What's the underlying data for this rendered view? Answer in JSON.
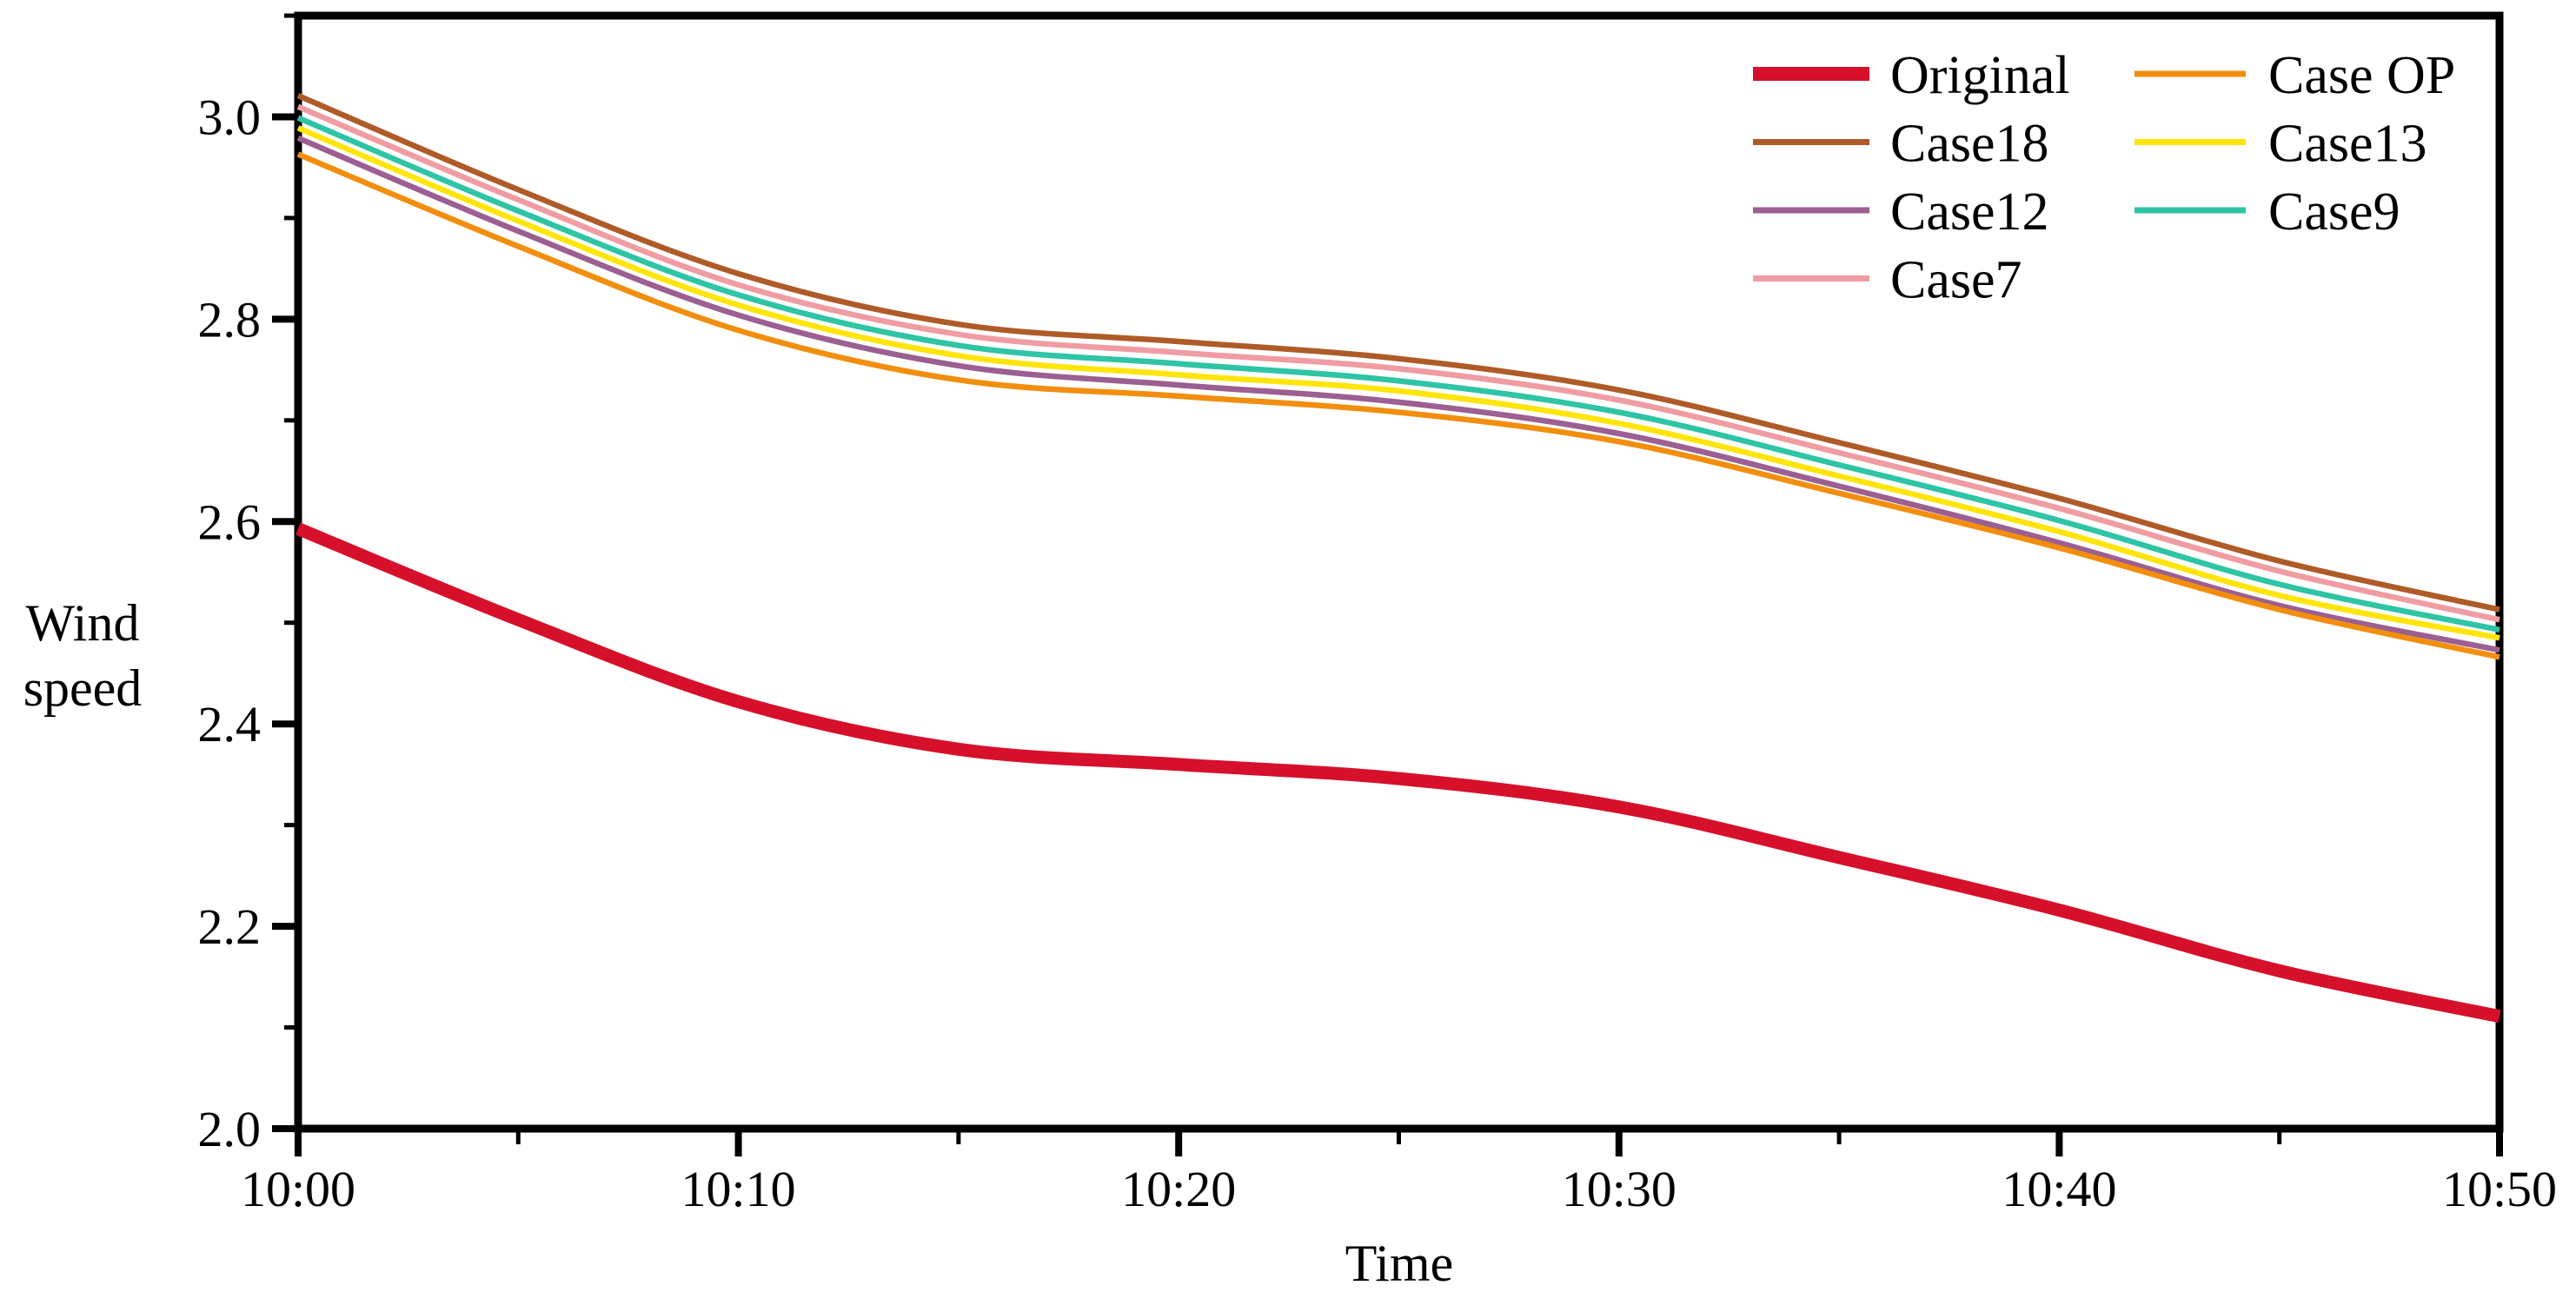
{
  "chart_data": {
    "type": "line",
    "title": "",
    "xlabel": "Time",
    "ylabel": "Wind speed",
    "ylabel_lines": [
      "Wind",
      "speed"
    ],
    "x_tick_labels": [
      "10:00",
      "10:10",
      "10:20",
      "10:30",
      "10:40",
      "10:50"
    ],
    "x_tick_minutes": [
      0,
      10,
      20,
      30,
      40,
      50
    ],
    "x_minor_tick_minutes": [
      5,
      15,
      25,
      35,
      45
    ],
    "x_minutes": [
      0,
      5,
      10,
      15,
      20,
      25,
      30,
      35,
      40,
      45,
      50
    ],
    "xlim_minutes": [
      0,
      50
    ],
    "ylim": [
      2.0,
      3.1
    ],
    "y_tick_labels": [
      "2.0",
      "2.2",
      "2.4",
      "2.6",
      "2.8",
      "3.0"
    ],
    "y_tick_values": [
      2.0,
      2.2,
      2.4,
      2.6,
      2.8,
      3.0
    ],
    "y_minor_tick_values": [
      2.1,
      2.3,
      2.5,
      2.7,
      2.9,
      3.1
    ],
    "grid": false,
    "legend_position": "top-right",
    "legend_columns": [
      [
        "Original",
        "Case18",
        "Case12",
        "Case7"
      ],
      [
        "Case OP",
        "Case13",
        "Case9"
      ]
    ],
    "axis_color": "#000000",
    "series": [
      {
        "name": "Original",
        "color": "#D6102B",
        "emphasized": true,
        "values": [
          2.593,
          2.503,
          2.422,
          2.375,
          2.36,
          2.346,
          2.318,
          2.268,
          2.216,
          2.156,
          2.111
        ]
      },
      {
        "name": "Case18",
        "color": "#AF5B28",
        "emphasized": false,
        "values": [
          3.021,
          2.928,
          2.845,
          2.795,
          2.778,
          2.761,
          2.73,
          2.678,
          2.623,
          2.561,
          2.513
        ]
      },
      {
        "name": "Case12",
        "color": "#9C5F91",
        "emphasized": false,
        "values": [
          2.979,
          2.887,
          2.804,
          2.754,
          2.735,
          2.718,
          2.687,
          2.635,
          2.579,
          2.517,
          2.473
        ]
      },
      {
        "name": "Case7",
        "color": "#F09CA3",
        "emphasized": false,
        "values": [
          3.01,
          2.918,
          2.834,
          2.785,
          2.767,
          2.751,
          2.72,
          2.668,
          2.613,
          2.551,
          2.503
        ]
      },
      {
        "name": "Case OP",
        "color": "#F28E0D",
        "emphasized": false,
        "values": [
          2.963,
          2.872,
          2.789,
          2.74,
          2.724,
          2.708,
          2.679,
          2.628,
          2.574,
          2.513,
          2.466
        ]
      },
      {
        "name": "Case13",
        "color": "#FFE50A",
        "emphasized": false,
        "values": [
          2.989,
          2.897,
          2.814,
          2.764,
          2.745,
          2.729,
          2.697,
          2.645,
          2.59,
          2.527,
          2.485
        ]
      },
      {
        "name": "Case9",
        "color": "#2EC4A5",
        "emphasized": false,
        "values": [
          2.999,
          2.907,
          2.824,
          2.774,
          2.756,
          2.739,
          2.708,
          2.656,
          2.601,
          2.538,
          2.493
        ]
      }
    ]
  }
}
